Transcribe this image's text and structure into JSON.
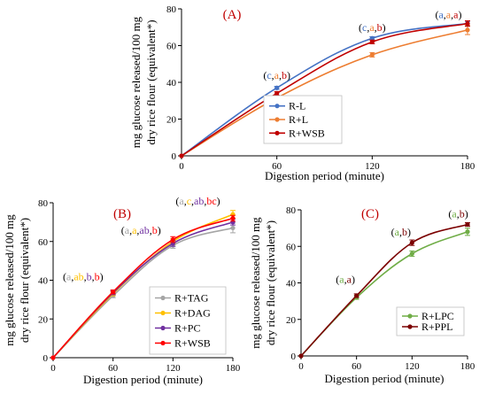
{
  "chart_data": [
    {
      "type": "line",
      "title": "(A)",
      "xlabel": "Digestion period (minute)",
      "ylabel_lines": [
        "mg glucose released/100 mg",
        "dry rice flour (equivalent*)"
      ],
      "x": [
        0,
        60,
        120,
        180
      ],
      "xlim": [
        0,
        180
      ],
      "ylim": [
        0,
        80
      ],
      "xticks": [
        "0",
        "60",
        "120",
        "180"
      ],
      "yticks": [
        "0",
        "20",
        "40",
        "60",
        "80"
      ],
      "legend_position": "bottom-right",
      "series": [
        {
          "name": "R-L",
          "color": "#4472c4",
          "values": [
            0,
            37,
            64,
            72
          ],
          "err": [
            0,
            0.8,
            0.8,
            1.2
          ]
        },
        {
          "name": "R+L",
          "color": "#ed7d31",
          "values": [
            0,
            31.5,
            55,
            68.5
          ],
          "err": [
            0,
            0.8,
            1.2,
            2.5
          ]
        },
        {
          "name": "R+WSB",
          "color": "#c00000",
          "values": [
            0,
            34,
            62,
            72
          ],
          "err": [
            0,
            1.0,
            1.0,
            1.5
          ]
        }
      ],
      "annotations": [
        {
          "x": 60,
          "y": 42,
          "parts": [
            {
              "t": "(",
              "c": "#000"
            },
            {
              "t": "c",
              "c": "#4472c4"
            },
            {
              "t": ",",
              "c": "#000"
            },
            {
              "t": "a",
              "c": "#ed7d31"
            },
            {
              "t": ",",
              "c": "#000"
            },
            {
              "t": "b",
              "c": "#c00000"
            },
            {
              "t": ")",
              "c": "#000"
            }
          ]
        },
        {
          "x": 120,
          "y": 68,
          "parts": [
            {
              "t": "(",
              "c": "#000"
            },
            {
              "t": "c",
              "c": "#4472c4"
            },
            {
              "t": ",",
              "c": "#000"
            },
            {
              "t": "a",
              "c": "#ed7d31"
            },
            {
              "t": ",",
              "c": "#000"
            },
            {
              "t": "b",
              "c": "#c00000"
            },
            {
              "t": ")",
              "c": "#000"
            }
          ]
        },
        {
          "x": 168,
          "y": 75,
          "parts": [
            {
              "t": "(",
              "c": "#000"
            },
            {
              "t": "a",
              "c": "#4472c4"
            },
            {
              "t": ",",
              "c": "#000"
            },
            {
              "t": "a",
              "c": "#ed7d31"
            },
            {
              "t": ",",
              "c": "#000"
            },
            {
              "t": "a",
              "c": "#c00000"
            },
            {
              "t": ")",
              "c": "#000"
            }
          ]
        }
      ]
    },
    {
      "type": "line",
      "title": "(B)",
      "xlabel": "Digestion period (minute)",
      "ylabel_lines": [
        "mg glucose released/100 mg",
        "dry rice flour (equivalent*)"
      ],
      "x": [
        0,
        60,
        120,
        180
      ],
      "xlim": [
        0,
        180
      ],
      "ylim": [
        0,
        80
      ],
      "xticks": [
        "0",
        "60",
        "120",
        "180"
      ],
      "yticks": [
        "0",
        "20",
        "40",
        "60",
        "80"
      ],
      "legend_position": "bottom-right",
      "series": [
        {
          "name": "R+TAG",
          "color": "#a5a5a5",
          "values": [
            0,
            32,
            58,
            67
          ],
          "err": [
            0,
            1.0,
            1.5,
            2.5
          ]
        },
        {
          "name": "R+DAG",
          "color": "#ffc000",
          "values": [
            0,
            33,
            60,
            74
          ],
          "err": [
            0,
            1.0,
            1.5,
            2.0
          ]
        },
        {
          "name": "R+PC",
          "color": "#7030a0",
          "values": [
            0,
            33.5,
            59,
            70
          ],
          "err": [
            0,
            1.0,
            1.5,
            1.5
          ]
        },
        {
          "name": "R+WSB",
          "color": "#ff0000",
          "values": [
            0,
            34,
            61,
            72
          ],
          "err": [
            0,
            1.0,
            1.5,
            1.5
          ]
        }
      ],
      "annotations": [
        {
          "x": 30,
          "y": 40,
          "parts": [
            {
              "t": "(",
              "c": "#000"
            },
            {
              "t": "a",
              "c": "#a5a5a5"
            },
            {
              "t": ",",
              "c": "#000"
            },
            {
              "t": "ab",
              "c": "#ffc000"
            },
            {
              "t": ",",
              "c": "#000"
            },
            {
              "t": "b",
              "c": "#7030a0"
            },
            {
              "t": ",",
              "c": "#000"
            },
            {
              "t": "b",
              "c": "#ff0000"
            },
            {
              "t": ")",
              "c": "#000"
            }
          ]
        },
        {
          "x": 88,
          "y": 64,
          "parts": [
            {
              "t": "(",
              "c": "#000"
            },
            {
              "t": "a",
              "c": "#a5a5a5"
            },
            {
              "t": ",",
              "c": "#000"
            },
            {
              "t": "a",
              "c": "#ffc000"
            },
            {
              "t": ",",
              "c": "#000"
            },
            {
              "t": "ab",
              "c": "#7030a0"
            },
            {
              "t": ",",
              "c": "#000"
            },
            {
              "t": "b",
              "c": "#ff0000"
            },
            {
              "t": ")",
              "c": "#000"
            }
          ]
        },
        {
          "x": 145,
          "y": 79,
          "parts": [
            {
              "t": "(",
              "c": "#000"
            },
            {
              "t": "a",
              "c": "#a5a5a5"
            },
            {
              "t": ",",
              "c": "#000"
            },
            {
              "t": "c",
              "c": "#ffc000"
            },
            {
              "t": ",",
              "c": "#000"
            },
            {
              "t": "ab",
              "c": "#7030a0"
            },
            {
              "t": ",",
              "c": "#000"
            },
            {
              "t": "bc",
              "c": "#ff0000"
            },
            {
              "t": ")",
              "c": "#000"
            }
          ]
        }
      ]
    },
    {
      "type": "line",
      "title": "(C)",
      "xlabel": "Digestion period (minute)",
      "ylabel_lines": [
        "mg glucose released/100 mg",
        "dry rice flour (equivalent*)"
      ],
      "x": [
        0,
        60,
        120,
        180
      ],
      "xlim": [
        0,
        180
      ],
      "ylim": [
        0,
        80
      ],
      "xticks": [
        "0",
        "60",
        "120",
        "180"
      ],
      "yticks": [
        "0",
        "20",
        "40",
        "60",
        "80"
      ],
      "legend_position": "bottom-right",
      "series": [
        {
          "name": "R+LPC",
          "color": "#70ad47",
          "values": [
            0,
            32,
            56,
            68
          ],
          "err": [
            0,
            1.0,
            1.5,
            2.0
          ]
        },
        {
          "name": "R+PPL",
          "color": "#7b0000",
          "values": [
            0,
            33,
            62,
            72
          ],
          "err": [
            0,
            1.0,
            1.5,
            1.0
          ]
        }
      ],
      "annotations": [
        {
          "x": 48,
          "y": 40,
          "parts": [
            {
              "t": "(",
              "c": "#000"
            },
            {
              "t": "a",
              "c": "#70ad47"
            },
            {
              "t": ",",
              "c": "#000"
            },
            {
              "t": "a",
              "c": "#7b0000"
            },
            {
              "t": ")",
              "c": "#000"
            }
          ]
        },
        {
          "x": 108,
          "y": 66,
          "parts": [
            {
              "t": "(",
              "c": "#000"
            },
            {
              "t": "a",
              "c": "#70ad47"
            },
            {
              "t": ",",
              "c": "#000"
            },
            {
              "t": "b",
              "c": "#7b0000"
            },
            {
              "t": ")",
              "c": "#000"
            }
          ]
        },
        {
          "x": 170,
          "y": 76,
          "parts": [
            {
              "t": "(",
              "c": "#000"
            },
            {
              "t": "a",
              "c": "#70ad47"
            },
            {
              "t": ",",
              "c": "#000"
            },
            {
              "t": "b",
              "c": "#7b0000"
            },
            {
              "t": ")",
              "c": "#000"
            }
          ]
        }
      ]
    }
  ]
}
